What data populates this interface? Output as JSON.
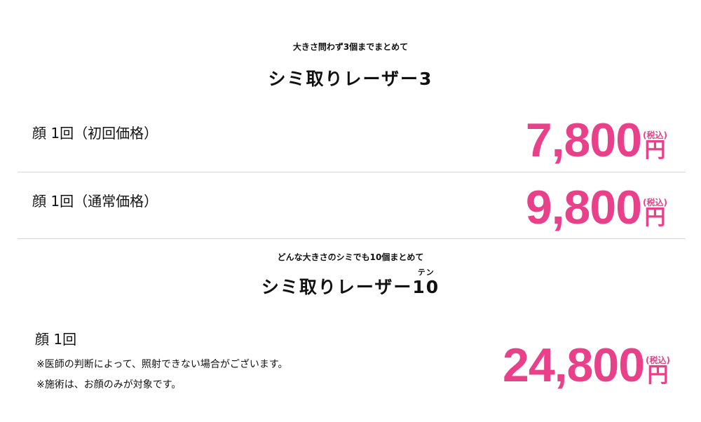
{
  "accent_color": "#e8418a",
  "plan3": {
    "subtitle": "大きさ問わず3個までまとめて",
    "title": "シミ取りレーザー3",
    "rows": [
      {
        "label": "顔 1回（初回価格）",
        "price": "7,800",
        "tax": "(税込)",
        "unit": "円"
      },
      {
        "label": "顔 1回（通常価格）",
        "price": "9,800",
        "tax": "(税込)",
        "unit": "円"
      }
    ]
  },
  "plan10": {
    "subtitle": "どんな大きさのシミでも10個まとめて",
    "title": "シミ取りレーザー",
    "title_number": "10",
    "title_ruby": "テン",
    "label": "顔 1回",
    "notes": [
      "※医師の判断によって、照射できない場合がございます。",
      "※施術は、お顔のみが対象です。"
    ],
    "price": "24,800",
    "tax": "(税込)",
    "unit": "円"
  }
}
